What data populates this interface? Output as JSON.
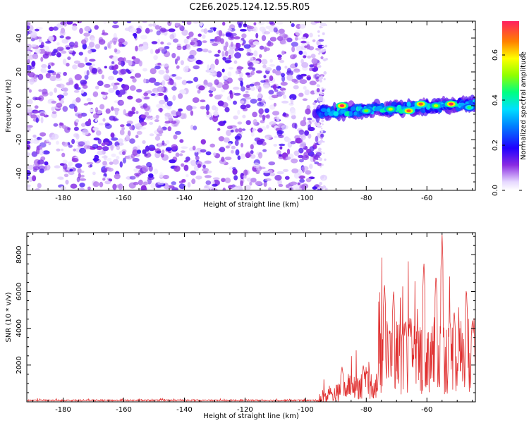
{
  "title": "C2E6.2025.124.12.55.R05",
  "chart_data": [
    {
      "type": "heatmap",
      "name": "spectrogram",
      "xlabel": "Height of straight line (km)",
      "ylabel": "Frequency (Hz)",
      "xlim": [
        -192,
        -44
      ],
      "ylim": [
        -50,
        50
      ],
      "xticks": [
        -180,
        -160,
        -140,
        -120,
        -100,
        -80,
        -60
      ],
      "yticks": [
        -40,
        -20,
        0,
        20,
        40
      ],
      "noise_region": {
        "x": [
          -192,
          -96
        ],
        "y": [
          -50,
          50
        ],
        "amplitude": [
          0.05,
          0.15
        ]
      },
      "signal_band": {
        "x": [
          -97,
          -44
        ],
        "center_y_start": -4,
        "center_y_end": 1,
        "halfwidth_hz": 5,
        "peaks": [
          {
            "x": -88,
            "y": 0,
            "amplitude": 0.75
          },
          {
            "x": -80,
            "y": -3,
            "amplitude": 0.5
          },
          {
            "x": -72,
            "y": -2,
            "amplitude": 0.55
          },
          {
            "x": -66,
            "y": -3,
            "amplitude": 0.7
          },
          {
            "x": -62,
            "y": 1,
            "amplitude": 0.7
          },
          {
            "x": -57,
            "y": 0,
            "amplitude": 0.55
          },
          {
            "x": -52,
            "y": 1,
            "amplitude": 0.75
          },
          {
            "x": -46,
            "y": -1,
            "amplitude": 0.45
          }
        ]
      },
      "colorbar": {
        "label": "Normalized spectral amplitude",
        "range": [
          0.0,
          0.75
        ],
        "ticks": [
          0.0,
          0.2,
          0.4,
          0.6
        ],
        "tick_labels": [
          "0.0",
          "0.2",
          "0.4",
          "0.6"
        ]
      }
    },
    {
      "type": "line",
      "name": "snr",
      "xlabel": "Height of straight line (km)",
      "ylabel": "SNR (10 * v/v)",
      "xlim": [
        -192,
        -44
      ],
      "ylim": [
        0,
        9200
      ],
      "xticks": [
        -180,
        -160,
        -140,
        -120,
        -100,
        -80,
        -60
      ],
      "yticks": [
        2000,
        4000,
        6000,
        8000
      ],
      "color": "#e03030",
      "segments": [
        {
          "x": [
            -192,
            -96
          ],
          "mean": 80,
          "spread": 60
        },
        {
          "x": [
            -96,
            -86
          ],
          "mean_start": 120,
          "mean_end": 700,
          "spread": 700
        },
        {
          "x": [
            -86,
            -76
          ],
          "mean": 900,
          "spread": 1100
        },
        {
          "x": [
            -76,
            -44
          ],
          "mean": 2500,
          "spread": 3000
        }
      ],
      "peaks": [
        {
          "x": -88,
          "y": 1900
        },
        {
          "x": -81,
          "y": 2000
        },
        {
          "x": -74,
          "y": 6500
        },
        {
          "x": -71,
          "y": 6100
        },
        {
          "x": -67,
          "y": 4500
        },
        {
          "x": -61,
          "y": 7700
        },
        {
          "x": -57,
          "y": 7000
        },
        {
          "x": -55,
          "y": 9200
        },
        {
          "x": -51,
          "y": 5000
        },
        {
          "x": -47,
          "y": 6200
        },
        {
          "x": -45,
          "y": 4500
        }
      ]
    }
  ]
}
